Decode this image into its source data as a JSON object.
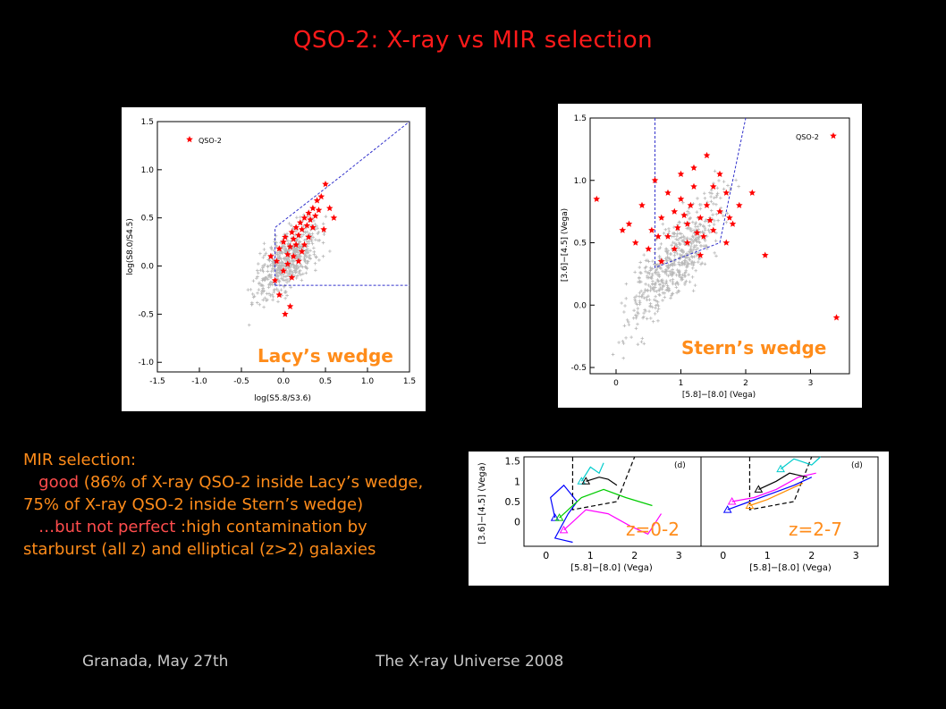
{
  "slide": {
    "title": "QSO-2: X-ray vs MIR selection",
    "text": {
      "heading": "MIR selection:",
      "good_word": "good",
      "good_rest": "(86% of X-ray QSO-2 inside Lacy’s wedge, 75% of X-ray QSO-2 inside Stern’s wedge)",
      "but_word": "…but not perfect",
      "but_rest": ":high contamination by starburst (all z) and elliptical (z>2) galaxies"
    },
    "footer_left": "Granada, May 27th",
    "footer_right": "The X-ray Universe 2008"
  },
  "chart_data": [
    {
      "type": "scatter",
      "title": "Lacy’s wedge",
      "xlabel": "log(S5.8/S3.6)",
      "ylabel": "log(S8.0/S4.5)",
      "xlim": [
        -1.5,
        1.5
      ],
      "ylim": [
        -1.1,
        1.5
      ],
      "xticks": [
        "-1.5",
        "-1.0",
        "-0.5",
        "0.0",
        "0.5",
        "1.0",
        "1.5"
      ],
      "yticks": [
        "1.5",
        "1.0",
        "0.5",
        "0.0",
        "-0.5",
        "-1.0"
      ],
      "legend": "QSO-2",
      "legend_position": "top-left",
      "wedge": [
        [
          -0.1,
          -0.2
        ],
        [
          -0.1,
          0.4
        ],
        [
          0.68,
          0.93
        ],
        [
          1.5,
          2.1
        ]
      ],
      "wedge_floor": [
        [
          -0.1,
          -0.2
        ],
        [
          1.5,
          -0.2
        ]
      ],
      "series": [
        {
          "name": "QSO-2",
          "color": "#ff0000",
          "marker": "star",
          "points": [
            [
              -0.08,
              0.05
            ],
            [
              -0.05,
              0.18
            ],
            [
              0.0,
              0.25
            ],
            [
              0.02,
              0.3
            ],
            [
              0.05,
              0.12
            ],
            [
              0.08,
              0.2
            ],
            [
              0.1,
              0.35
            ],
            [
              0.12,
              0.28
            ],
            [
              0.15,
              0.4
            ],
            [
              0.18,
              0.32
            ],
            [
              0.2,
              0.45
            ],
            [
              0.22,
              0.38
            ],
            [
              0.25,
              0.5
            ],
            [
              0.28,
              0.42
            ],
            [
              0.3,
              0.55
            ],
            [
              0.32,
              0.48
            ],
            [
              0.35,
              0.6
            ],
            [
              0.38,
              0.52
            ],
            [
              0.4,
              0.68
            ],
            [
              0.45,
              0.72
            ],
            [
              0.5,
              0.85
            ],
            [
              0.42,
              0.58
            ],
            [
              0.05,
              0.02
            ],
            [
              0.0,
              -0.05
            ],
            [
              -0.1,
              -0.15
            ],
            [
              -0.05,
              -0.3
            ],
            [
              0.02,
              -0.5
            ],
            [
              0.08,
              -0.42
            ],
            [
              0.12,
              0.1
            ],
            [
              0.25,
              0.22
            ],
            [
              0.3,
              0.3
            ],
            [
              -0.15,
              0.1
            ],
            [
              0.18,
              0.05
            ],
            [
              0.1,
              -0.12
            ],
            [
              0.35,
              0.4
            ],
            [
              0.55,
              0.6
            ],
            [
              0.6,
              0.5
            ],
            [
              0.48,
              0.38
            ],
            [
              0.22,
              0.15
            ],
            [
              0.15,
              0.22
            ]
          ]
        },
        {
          "name": "X-ray sources",
          "color": "#b0b0b0",
          "marker": "cross",
          "points": []
        }
      ]
    },
    {
      "type": "scatter",
      "title": "Stern’s wedge",
      "xlabel": "[5.8]−[8.0] (Vega)",
      "ylabel": "[3.6]−[4.5] (Vega)",
      "xlim": [
        -0.4,
        3.6
      ],
      "ylim": [
        -0.55,
        1.5
      ],
      "xticks": [
        "0",
        "1",
        "2",
        "3"
      ],
      "yticks": [
        "1.5",
        "1.0",
        "0.5",
        "0.0",
        "-0.5"
      ],
      "legend": "QSO-2",
      "legend_position": "top-right",
      "wedge": [
        [
          0.6,
          1.5
        ],
        [
          0.6,
          0.3
        ],
        [
          1.6,
          0.5
        ],
        [
          2.0,
          1.5
        ]
      ],
      "series": [
        {
          "name": "QSO-2",
          "color": "#ff0000",
          "marker": "star",
          "points": [
            [
              -0.3,
              0.85
            ],
            [
              0.2,
              0.65
            ],
            [
              0.4,
              0.8
            ],
            [
              0.55,
              0.6
            ],
            [
              0.7,
              0.7
            ],
            [
              0.8,
              0.55
            ],
            [
              0.9,
              0.75
            ],
            [
              1.0,
              0.85
            ],
            [
              1.1,
              0.65
            ],
            [
              1.2,
              0.95
            ],
            [
              1.3,
              0.7
            ],
            [
              1.4,
              0.8
            ],
            [
              1.5,
              0.6
            ],
            [
              1.6,
              0.75
            ],
            [
              1.7,
              0.9
            ],
            [
              1.8,
              0.65
            ],
            [
              1.0,
              1.05
            ],
            [
              1.2,
              1.1
            ],
            [
              1.4,
              1.2
            ],
            [
              1.6,
              1.05
            ],
            [
              0.9,
              0.45
            ],
            [
              1.1,
              0.5
            ],
            [
              1.3,
              0.4
            ],
            [
              0.7,
              0.35
            ],
            [
              0.5,
              0.45
            ],
            [
              1.5,
              0.95
            ],
            [
              0.8,
              0.9
            ],
            [
              1.9,
              0.8
            ],
            [
              2.1,
              0.9
            ],
            [
              0.3,
              0.5
            ],
            [
              0.6,
              1.0
            ],
            [
              1.7,
              0.5
            ],
            [
              3.4,
              -0.1
            ],
            [
              1.25,
              0.58
            ],
            [
              1.45,
              0.68
            ],
            [
              1.05,
              0.72
            ],
            [
              0.95,
              0.62
            ],
            [
              1.35,
              0.55
            ],
            [
              1.15,
              0.8
            ],
            [
              0.65,
              0.55
            ],
            [
              1.75,
              0.7
            ],
            [
              2.3,
              0.4
            ],
            [
              0.1,
              0.6
            ]
          ]
        },
        {
          "name": "X-ray sources",
          "color": "#b0b0b0",
          "marker": "cross",
          "points": []
        }
      ]
    },
    {
      "type": "line",
      "title": "(d)",
      "xlabel": "[5.8]−[8.0] (Vega)",
      "ylabel": "[3.6]−[4.5] (Vega)",
      "xlim": [
        -0.5,
        3.5
      ],
      "ylim": [
        -0.6,
        1.6
      ],
      "xticks": [
        "0",
        "1",
        "2",
        "3"
      ],
      "yticks": [
        "1.5",
        "1",
        "0.5",
        "0"
      ],
      "annotation": "z=0-2",
      "series": [
        {
          "name": "",
          "color": "#0000ff",
          "values": [
            [
              0.2,
              0.1
            ],
            [
              0.1,
              0.6
            ],
            [
              0.4,
              0.9
            ],
            [
              0.7,
              0.5
            ],
            [
              0.5,
              0.2
            ],
            [
              0.2,
              -0.4
            ],
            [
              0.6,
              -0.5
            ]
          ]
        },
        {
          "name": "",
          "color": "#ff00ff",
          "values": [
            [
              0.4,
              -0.2
            ],
            [
              0.9,
              0.3
            ],
            [
              1.4,
              0.2
            ],
            [
              1.9,
              -0.1
            ],
            [
              2.3,
              -0.3
            ],
            [
              2.6,
              0.2
            ]
          ]
        },
        {
          "name": "",
          "color": "#00cc00",
          "values": [
            [
              0.3,
              0.1
            ],
            [
              0.8,
              0.6
            ],
            [
              1.3,
              0.8
            ],
            [
              1.8,
              0.6
            ],
            [
              2.4,
              0.4
            ]
          ]
        },
        {
          "name": "",
          "color": "#00cccc",
          "values": [
            [
              0.8,
              1.0
            ],
            [
              1.0,
              1.35
            ],
            [
              1.2,
              1.2
            ],
            [
              1.3,
              1.45
            ]
          ]
        },
        {
          "name": "",
          "color": "#000000",
          "values": [
            [
              0.9,
              1.0
            ],
            [
              1.2,
              1.1
            ],
            [
              1.4,
              1.05
            ],
            [
              1.6,
              0.9
            ]
          ]
        }
      ]
    },
    {
      "type": "line",
      "title": "(d)",
      "xlabel": "[5.8]−[8.0] (Vega)",
      "ylabel": "",
      "xlim": [
        -0.5,
        3.5
      ],
      "ylim": [
        -0.6,
        1.6
      ],
      "xticks": [
        "0",
        "1",
        "2",
        "3"
      ],
      "annotation": "z=2-7",
      "series": [
        {
          "name": "",
          "color": "#0000ff",
          "values": [
            [
              0.1,
              0.3
            ],
            [
              0.6,
              0.5
            ],
            [
              1.1,
              0.7
            ],
            [
              1.6,
              0.9
            ],
            [
              2.0,
              1.1
            ]
          ]
        },
        {
          "name": "",
          "color": "#ff00ff",
          "values": [
            [
              0.2,
              0.5
            ],
            [
              0.7,
              0.6
            ],
            [
              1.2,
              0.8
            ],
            [
              1.7,
              1.1
            ],
            [
              2.1,
              1.2
            ]
          ]
        },
        {
          "name": "",
          "color": "#00cccc",
          "values": [
            [
              1.3,
              1.3
            ],
            [
              1.6,
              1.55
            ],
            [
              2.0,
              1.4
            ],
            [
              2.2,
              1.6
            ]
          ]
        },
        {
          "name": "",
          "color": "#000000",
          "values": [
            [
              0.8,
              0.8
            ],
            [
              1.2,
              1.0
            ],
            [
              1.5,
              1.2
            ],
            [
              1.9,
              1.1
            ]
          ]
        },
        {
          "name": "",
          "color": "#ff8c00",
          "values": [
            [
              0.6,
              0.4
            ],
            [
              1.0,
              0.55
            ],
            [
              1.4,
              0.75
            ],
            [
              1.8,
              0.95
            ]
          ]
        }
      ]
    }
  ]
}
